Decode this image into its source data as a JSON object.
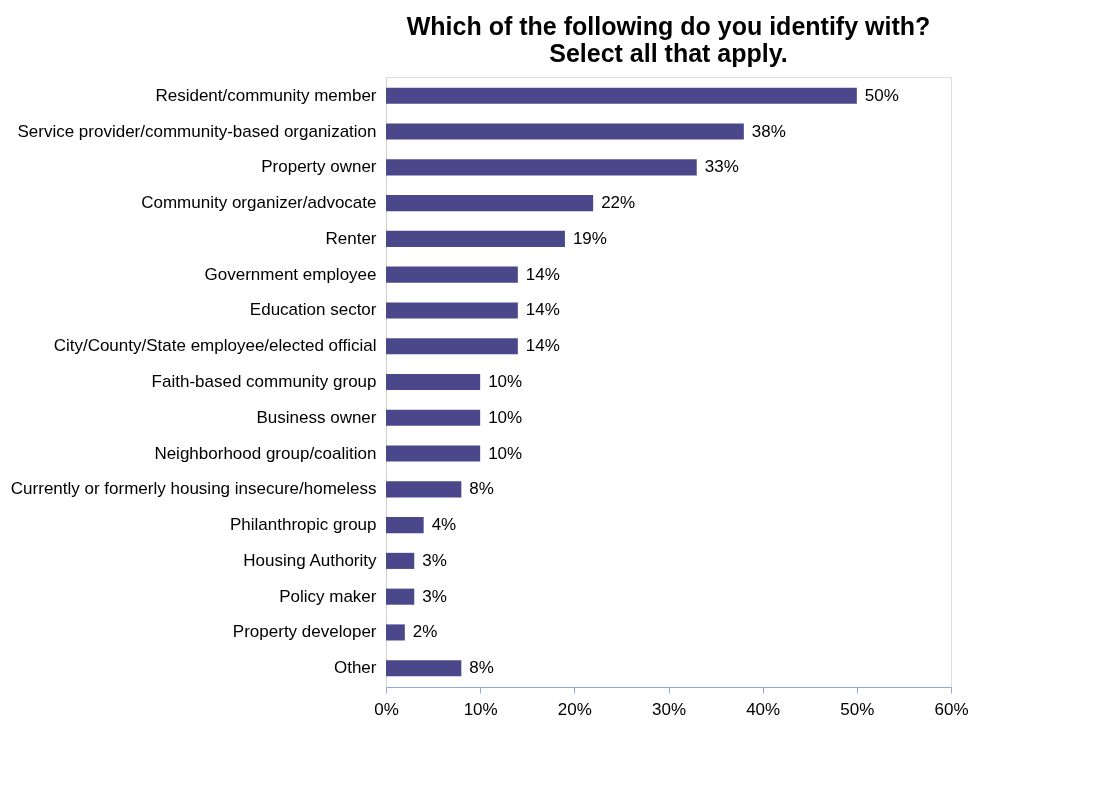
{
  "chart_data": {
    "type": "bar",
    "orientation": "horizontal",
    "title": "Which of the following do you identify with?\nSelect all that apply.",
    "categories": [
      "Resident/community member",
      "Service provider/community-based organization",
      "Property owner",
      "Community organizer/advocate",
      "Renter",
      "Government employee",
      "Education sector",
      "City/County/State employee/elected official",
      "Faith-based community group",
      "Business owner",
      "Neighborhood group/coalition",
      "Currently or formerly housing insecure/homeless",
      "Philanthropic group",
      "Housing Authority",
      "Policy maker",
      "Property developer",
      "Other"
    ],
    "values": [
      50,
      38,
      33,
      22,
      19,
      14,
      14,
      14,
      10,
      10,
      10,
      8,
      4,
      3,
      3,
      2,
      8
    ],
    "value_labels": [
      "50%",
      "38%",
      "33%",
      "22%",
      "19%",
      "14%",
      "14%",
      "14%",
      "10%",
      "10%",
      "10%",
      "8%",
      "4%",
      "3%",
      "3%",
      "2%",
      "8%"
    ],
    "color": "#4b478b",
    "xlim": [
      0,
      60
    ],
    "xticks": [
      {
        "value": 0,
        "label": "0%"
      },
      {
        "value": 10,
        "label": "10%"
      },
      {
        "value": 20,
        "label": "20%"
      },
      {
        "value": 30,
        "label": "30%"
      },
      {
        "value": 40,
        "label": "40%"
      },
      {
        "value": 50,
        "label": "50%"
      },
      {
        "value": 60,
        "label": "60%"
      }
    ],
    "grid": false
  }
}
